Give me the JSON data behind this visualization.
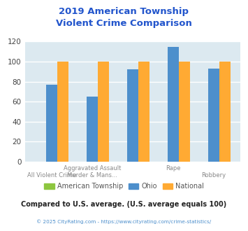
{
  "title": "2019 American Township\nViolent Crime Comparison",
  "title_color": "#2255cc",
  "categories": [
    "All Violent Crime",
    "Aggravated Assault",
    "Murder & Mans...",
    "Rape",
    "Robbery"
  ],
  "american_township": [
    0,
    0,
    0,
    0,
    0
  ],
  "ohio": [
    77,
    65,
    92,
    115,
    93
  ],
  "national": [
    100,
    100,
    100,
    100,
    100
  ],
  "colors": {
    "american_township": "#8DC63F",
    "ohio": "#4D8FCC",
    "national": "#FFAA33"
  },
  "ylim": [
    0,
    120
  ],
  "yticks": [
    0,
    20,
    40,
    60,
    80,
    100,
    120
  ],
  "label_top": [
    "",
    "Aggravated Assault",
    "",
    "Rape",
    ""
  ],
  "label_bottom": [
    "All Violent Crime",
    "Murder & Mans...",
    "",
    "",
    "Robbery"
  ],
  "background_color": "#dce9f0",
  "grid_color": "#ffffff",
  "legend_labels": [
    "American Township",
    "Ohio",
    "National"
  ],
  "note": "Compared to U.S. average. (U.S. average equals 100)",
  "note_color": "#222222",
  "copyright": "© 2025 CityRating.com - https://www.cityrating.com/crime-statistics/",
  "copyright_color": "#4D8FCC",
  "bar_width": 0.28
}
